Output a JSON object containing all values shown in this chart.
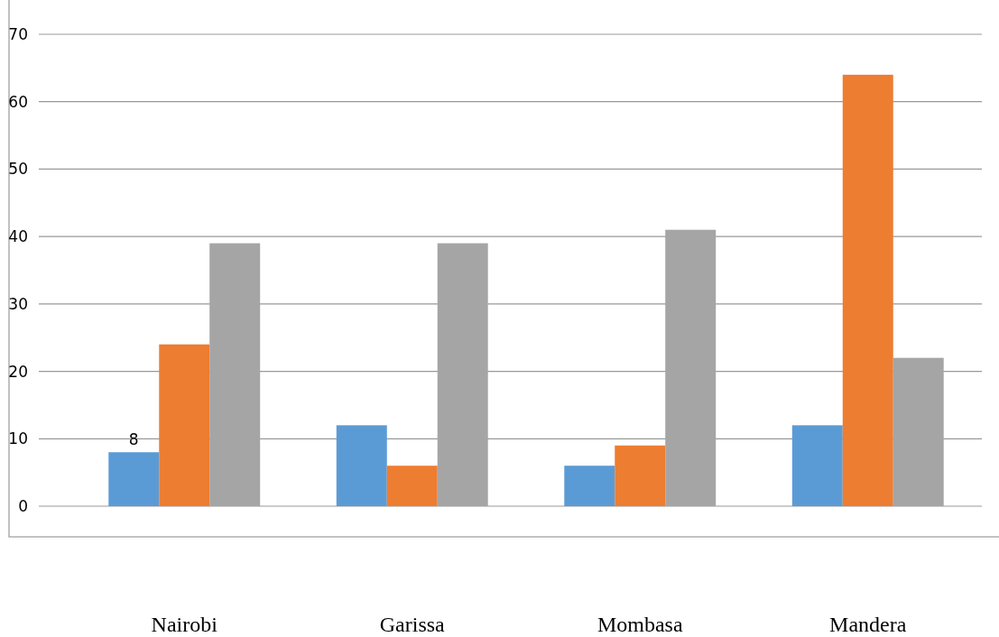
{
  "chart_data": {
    "type": "bar",
    "categories": [
      "Nairobi",
      "Garissa",
      "Mombasa",
      "Mandera"
    ],
    "series": [
      {
        "color": "#5b9bd5",
        "values": [
          8,
          12,
          6,
          12
        ],
        "value_labels": [
          "8",
          null,
          null,
          null
        ]
      },
      {
        "color": "#ed7d31",
        "values": [
          24,
          6,
          9,
          64
        ]
      },
      {
        "color": "#a5a5a5",
        "values": [
          39,
          39,
          41,
          22
        ]
      }
    ],
    "ylim": [
      0,
      70
    ],
    "yticks": [
      0,
      10,
      20,
      30,
      40,
      50,
      60,
      70
    ],
    "grid": "y"
  }
}
